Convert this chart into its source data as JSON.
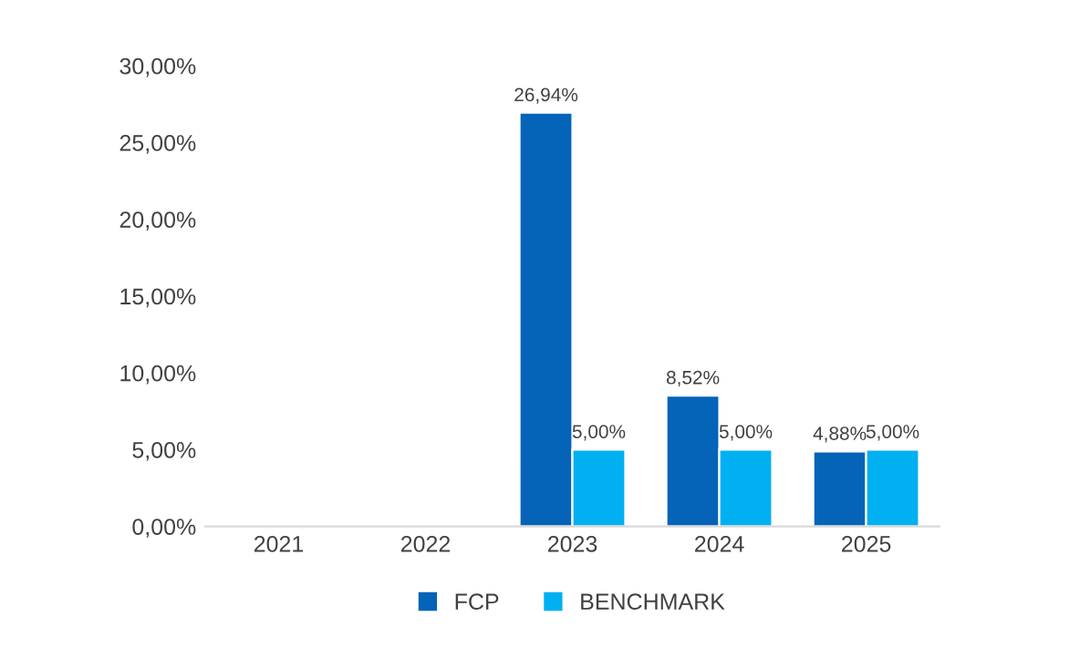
{
  "chart_data": {
    "type": "bar",
    "categories": [
      "2021",
      "2022",
      "2023",
      "2024",
      "2025"
    ],
    "series": [
      {
        "name": "FCP",
        "color": "#0563b8",
        "values": [
          null,
          null,
          26.94,
          8.52,
          4.88
        ],
        "value_labels": [
          null,
          null,
          "26,94%",
          "8,52%",
          "4,88%"
        ]
      },
      {
        "name": "BENCHMARK",
        "color": "#00b0f0",
        "values": [
          null,
          null,
          5.0,
          5.0,
          5.0
        ],
        "value_labels": [
          null,
          null,
          "5,00%",
          "5,00%",
          "5,00%"
        ]
      }
    ],
    "ylim": [
      0,
      30
    ],
    "yticks": [
      {
        "value": 0,
        "label": "0,00%"
      },
      {
        "value": 5,
        "label": "5,00%"
      },
      {
        "value": 10,
        "label": "10,00%"
      },
      {
        "value": 15,
        "label": "15,00%"
      },
      {
        "value": 20,
        "label": "20,00%"
      },
      {
        "value": 25,
        "label": "25,00%"
      },
      {
        "value": 30,
        "label": "30,00%"
      }
    ],
    "grid": false,
    "legend": "bottom"
  }
}
